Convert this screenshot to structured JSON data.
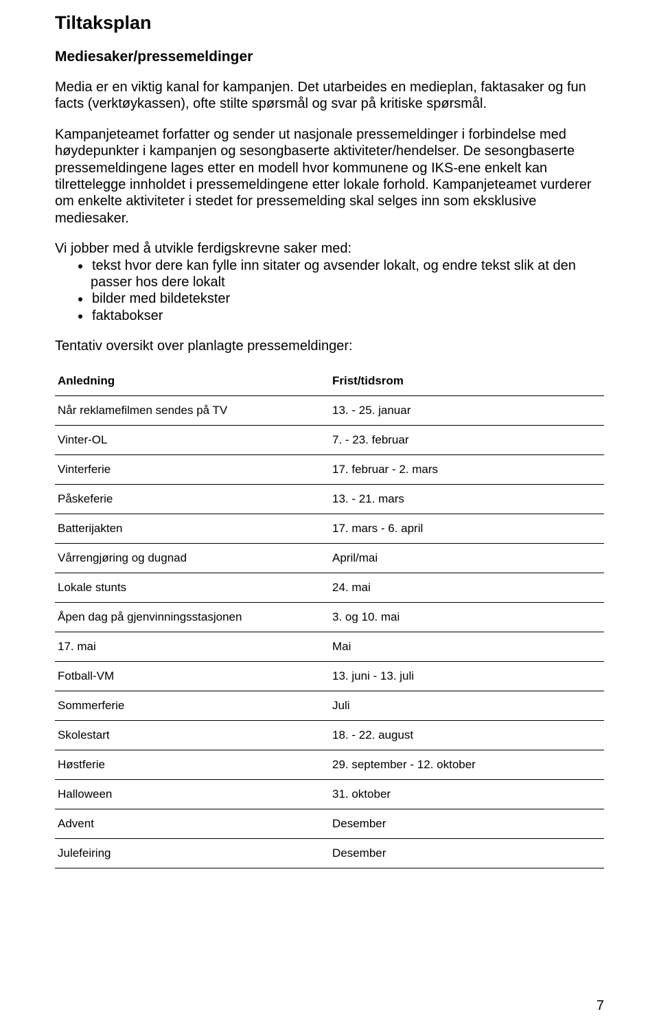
{
  "title": "Tiltaksplan",
  "subtitle": "Mediesaker/pressemeldinger",
  "para1": "Media er en viktig kanal for kampanjen. Det utarbeides en medieplan, faktasaker og fun facts (verktøykassen), ofte stilte spørsmål og svar på kritiske spørsmål.",
  "para2": "Kampanjeteamet forfatter og sender ut nasjonale pressemeldinger i forbindelse med høydepunkter i kampanjen og sesongbaserte aktiviteter/hendelser. De sesongbaserte pressemeldingene lages etter en modell hvor kommunene og IKS-ene enkelt kan tilrettelegge innholdet i pressemeldingene etter lokale forhold. Kampanjeteamet vurderer om enkelte aktiviteter i stedet for pressemelding skal selges inn som eksklusive mediesaker.",
  "list_intro": "Vi jobber med å utvikle ferdigskrevne saker med:",
  "bullet1a": "tekst hvor dere kan fylle inn sitater og avsender lokalt, og endre tekst slik at den",
  "bullet1b": "passer hos dere lokalt",
  "bullet2": "bilder med bildetekster",
  "bullet3": "faktabokser",
  "tentative": "Tentativ oversikt over planlagte pressemeldinger:",
  "table": {
    "header_left": "Anledning",
    "header_right": "Frist/tidsrom",
    "rows": [
      {
        "l": "Når reklamefilmen sendes på TV",
        "r": "13. - 25. januar"
      },
      {
        "l": "Vinter-OL",
        "r": "7. - 23. februar"
      },
      {
        "l": "Vinterferie",
        "r": "17. februar - 2. mars"
      },
      {
        "l": "Påskeferie",
        "r": "13. - 21. mars"
      },
      {
        "l": "Batterijakten",
        "r": "17. mars - 6. april"
      },
      {
        "l": "Vårrengjøring og dugnad",
        "r": "April/mai"
      },
      {
        "l": "Lokale stunts",
        "r": "24. mai"
      },
      {
        "l": "Åpen dag på gjenvinningsstasjonen",
        "r": "3. og 10. mai"
      },
      {
        "l": "17. mai",
        "r": "Mai"
      },
      {
        "l": "Fotball-VM",
        "r": "13. juni - 13. juli"
      },
      {
        "l": "Sommerferie",
        "r": "Juli"
      },
      {
        "l": "Skolestart",
        "r": "18. - 22. august"
      },
      {
        "l": "Høstferie",
        "r": "29. september - 12. oktober"
      },
      {
        "l": "Halloween",
        "r": "31. oktober"
      },
      {
        "l": "Advent",
        "r": "Desember"
      },
      {
        "l": "Julefeiring",
        "r": "Desember"
      }
    ]
  },
  "page_number": "7"
}
